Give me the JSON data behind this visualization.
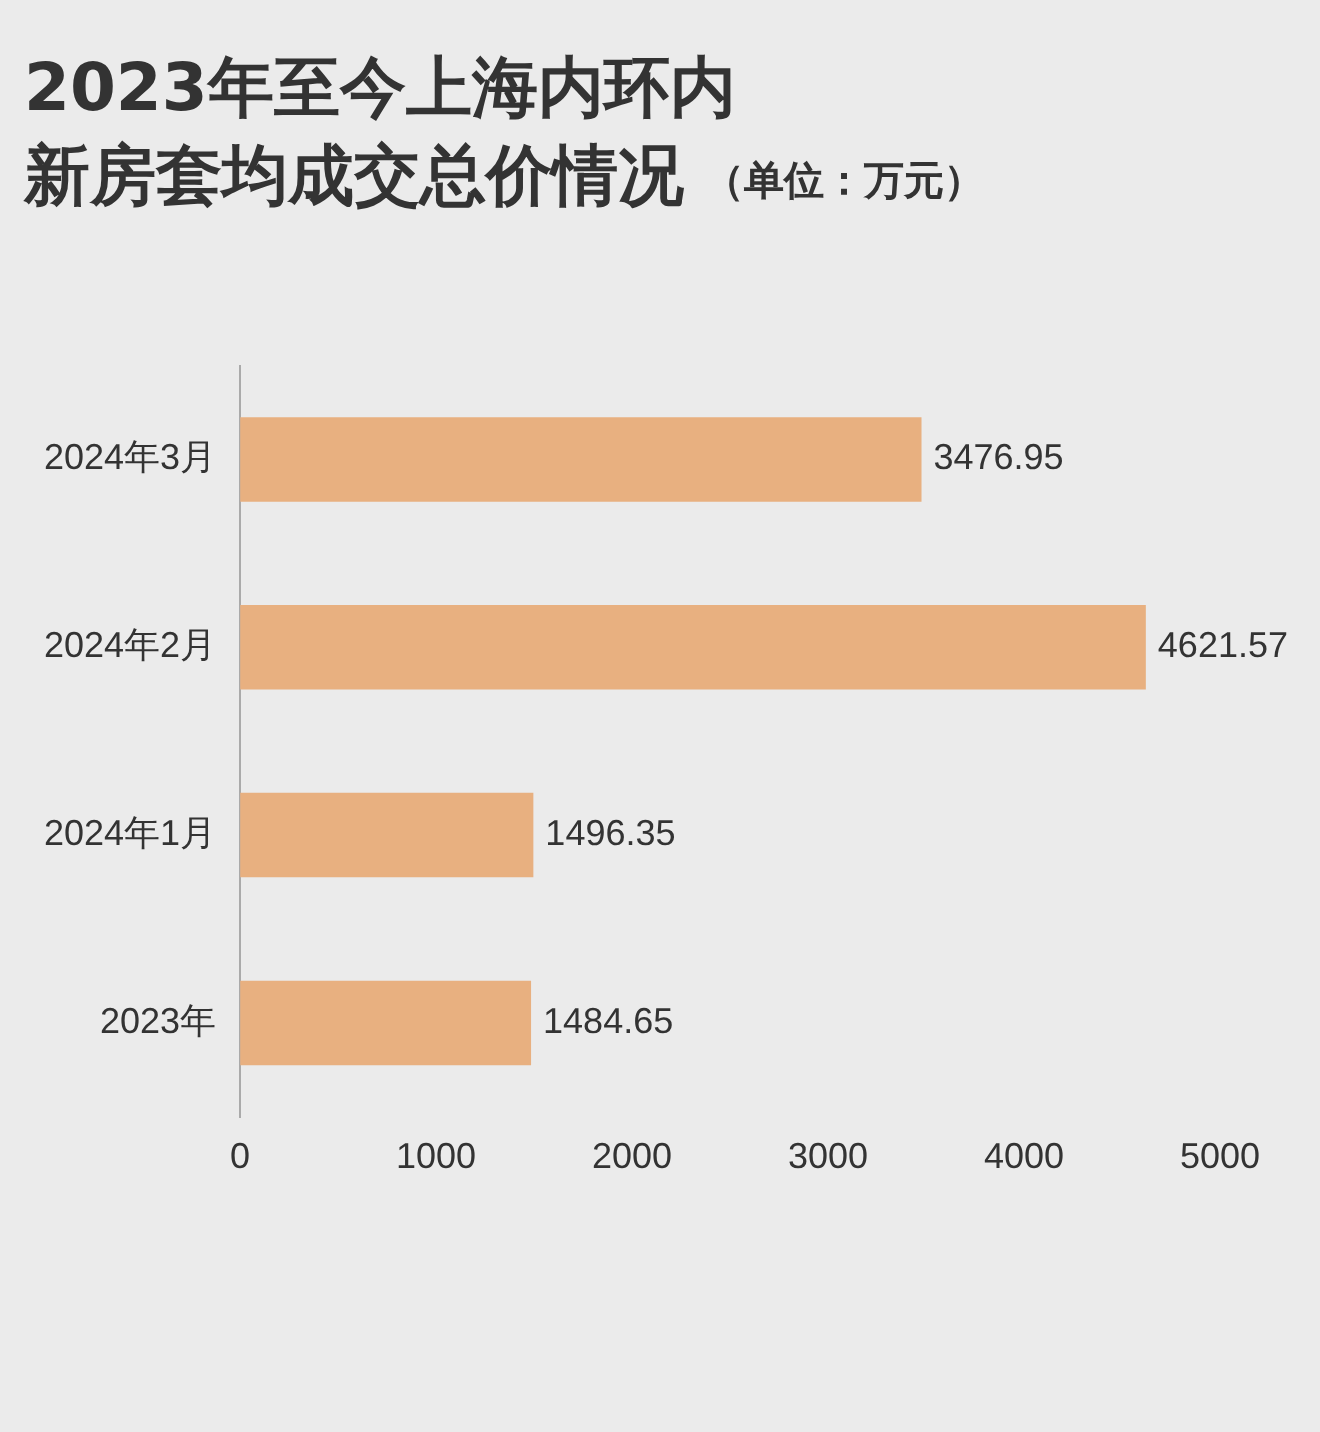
{
  "chart_data": {
    "type": "bar",
    "orientation": "horizontal",
    "title": "2023年至今上海内环内新房套均成交总价情况",
    "subtitle": "（单位：万元）",
    "categories": [
      "2024年3月",
      "2024年2月",
      "2024年1月",
      "2023年"
    ],
    "values": [
      3476.95,
      4621.57,
      1496.35,
      1484.65
    ],
    "color": "#e8b080",
    "xlim": [
      0,
      5000
    ],
    "xticks": [
      0,
      1000,
      2000,
      3000,
      4000,
      5000
    ],
    "grid": false,
    "legend": false,
    "data_labels": true
  }
}
